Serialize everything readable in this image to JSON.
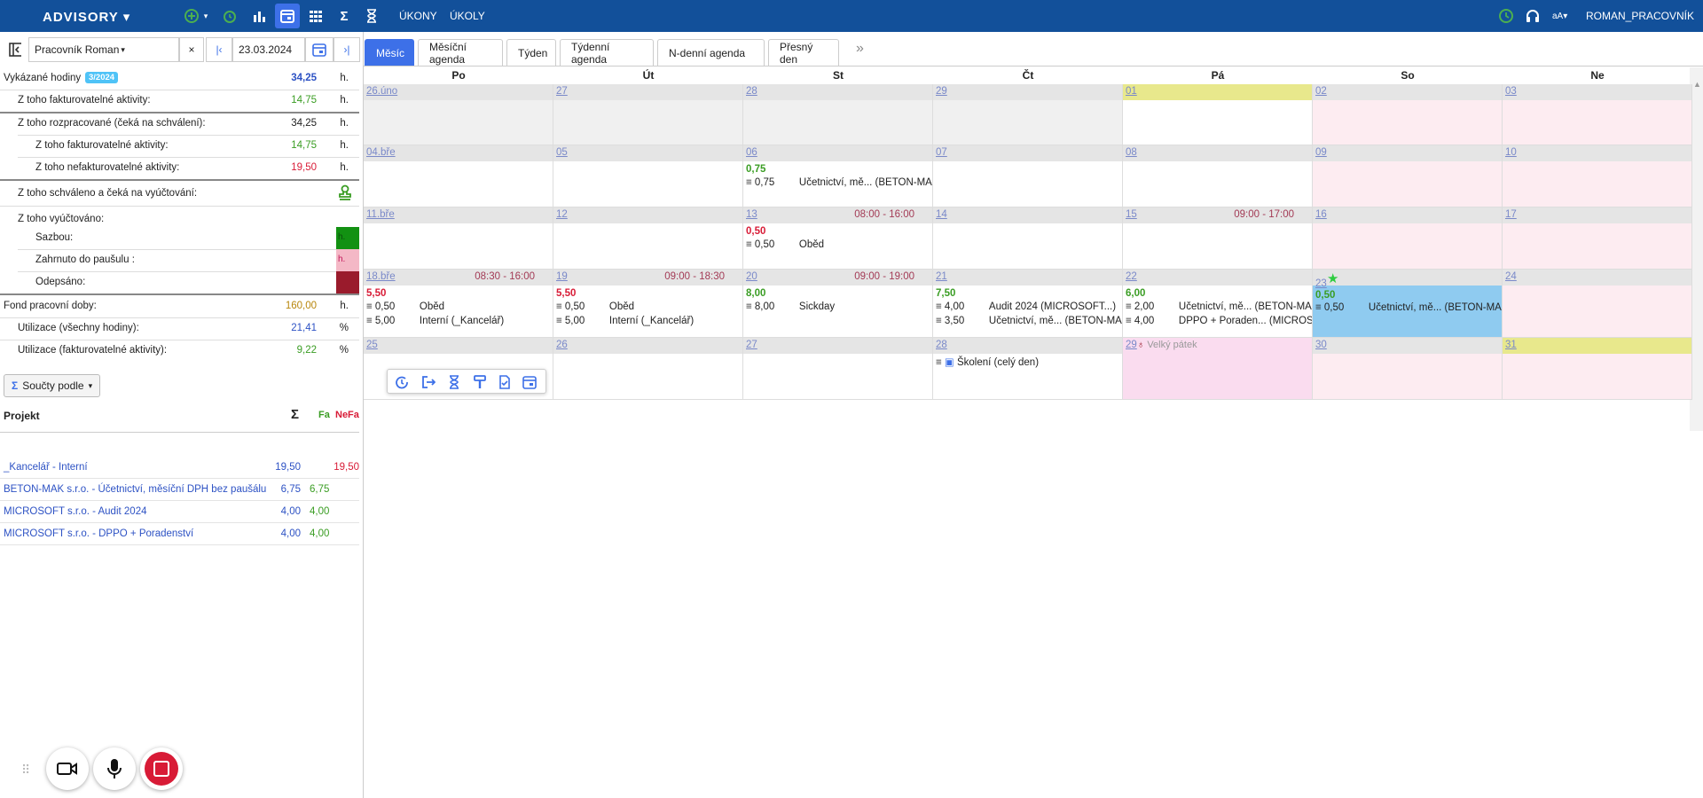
{
  "topbar": {
    "logo": "ADVISORY",
    "ukony": "ÚKONY",
    "ukoly": "ÚKOLY",
    "font_size": "aA",
    "user": "ROMAN_PRACOVNÍK"
  },
  "filter": {
    "worker": "Pracovník Roman",
    "date": "23.03.2024"
  },
  "stats": {
    "vykazane_label": "Vykázané hodiny",
    "vykazane_badge": "3/2024",
    "vykazane_value": "34,25",
    "unit": "h.",
    "fakt_label": "Z toho fakturovatelné aktivity:",
    "fakt_value": "14,75",
    "rozprac_label": "Z toho rozpracované (čeká na schválení):",
    "rozprac_value": "34,25",
    "rozprac_fakt_label": "Z toho fakturovatelné aktivity:",
    "rozprac_fakt_value": "14,75",
    "rozprac_nefakt_label": "Z toho nefakturovatelné aktivity:",
    "rozprac_nefakt_value": "19,50",
    "schvaleno_label": "Z toho schváleno a čeká na vyúčtování:",
    "vyuct_label": "Z toho vyúčtováno:",
    "sazbou_label": "Sazbou:",
    "sazbou_unit": "h.",
    "pausal_label": "Zahrnuto do paušulu :",
    "pausal_unit": "h.",
    "odepsano_label": "Odepsáno:",
    "fond_label": "Fond pracovní doby:",
    "fond_value": "160,00",
    "util_all_label": "Utilizace (všechny hodiny):",
    "util_all_value": "21,41",
    "pct": "%",
    "util_fakt_label": "Utilizace (fakturovatelné aktivity):",
    "util_fakt_value": "9,22"
  },
  "sums": {
    "button": "Součty podle",
    "col_project": "Projekt",
    "col_sum": "Σ",
    "col_fa": "Fa",
    "col_nefa": "NeFa"
  },
  "projects": [
    {
      "name": "_Kancelář - Interní",
      "sum": "19,50",
      "fa": "",
      "nefa": "19,50"
    },
    {
      "name": "BETON-MAK s.r.o. - Účetnictví, měsíční DPH bez paušálu",
      "sum": "6,75",
      "fa": "6,75",
      "nefa": ""
    },
    {
      "name": "MICROSOFT s.r.o. - Audit 2024",
      "sum": "4,00",
      "fa": "4,00",
      "nefa": ""
    },
    {
      "name": "MICROSOFT s.r.o. - DPPO + Poradenství",
      "sum": "4,00",
      "fa": "4,00",
      "nefa": ""
    }
  ],
  "tabs": [
    "Měsíc",
    "Měsíční agenda",
    "Týden",
    "Týdenní agenda",
    "N-denní agenda",
    "Přesný den"
  ],
  "days": [
    "Po",
    "Út",
    "St",
    "Čt",
    "Pá",
    "So",
    "Ne"
  ],
  "weeks": [
    [
      {
        "num": "26.úno"
      },
      {
        "num": "27"
      },
      {
        "num": "28"
      },
      {
        "num": "29"
      },
      {
        "num": "01"
      },
      {
        "num": "02"
      },
      {
        "num": "03"
      }
    ],
    [
      {
        "num": "04.bře"
      },
      {
        "num": "05"
      },
      {
        "num": "06",
        "total": "0,75",
        "events": [
          {
            "h": "0,75",
            "t": "Účetnictví, mě... (BETON-MAK)"
          }
        ]
      },
      {
        "num": "07"
      },
      {
        "num": "08"
      },
      {
        "num": "09"
      },
      {
        "num": "10"
      }
    ],
    [
      {
        "num": "11.bře"
      },
      {
        "num": "12"
      },
      {
        "num": "13",
        "time": "08:00 - 16:00",
        "total": "0,50",
        "events": [
          {
            "h": "0,50",
            "t": "Oběd"
          }
        ]
      },
      {
        "num": "14"
      },
      {
        "num": "15",
        "time": "09:00 - 17:00"
      },
      {
        "num": "16"
      },
      {
        "num": "17"
      }
    ],
    [
      {
        "num": "18.bře",
        "time": "08:30 - 16:00",
        "total": "5,50",
        "events": [
          {
            "h": "0,50",
            "t": "Oběd"
          },
          {
            "h": "5,00",
            "t": "Interní (_Kancelář)"
          }
        ]
      },
      {
        "num": "19",
        "time": "09:00 - 18:30",
        "total": "5,50",
        "events": [
          {
            "h": "0,50",
            "t": "Oběd"
          },
          {
            "h": "5,00",
            "t": "Interní (_Kancelář)"
          }
        ]
      },
      {
        "num": "20",
        "time": "09:00 - 19:00",
        "total": "8,00",
        "events": [
          {
            "h": "8,00",
            "t": "Sickday"
          }
        ]
      },
      {
        "num": "21",
        "total": "7,50",
        "events": [
          {
            "h": "4,00",
            "t": "Audit 2024 (MICROSOFT...)"
          },
          {
            "h": "3,50",
            "t": "Účetnictví, mě... (BETON-MAK)"
          }
        ]
      },
      {
        "num": "22",
        "total": "6,00",
        "events": [
          {
            "h": "2,00",
            "t": "Účetnictví, mě... (BETON-MAK)"
          },
          {
            "h": "4,00",
            "t": "DPPO + Poraden... (MICROSOFT)"
          }
        ]
      },
      {
        "num": "23",
        "total": "0,50",
        "events": [
          {
            "h": "0,50",
            "t": "Účetnictví, mě... (BETON-MAK)"
          }
        ]
      },
      {
        "num": "24"
      }
    ],
    [
      {
        "num": "25"
      },
      {
        "num": "26"
      },
      {
        "num": "27"
      },
      {
        "num": "28",
        "allday": "Školení (celý den)"
      },
      {
        "num": "29",
        "holiday": "Velký pátek"
      },
      {
        "num": "30"
      },
      {
        "num": "31"
      }
    ]
  ],
  "colors": {
    "brand": "#12509a",
    "accent": "#3d70e8",
    "weekend": "#fdecf1",
    "holiday": "#fadcef",
    "today": "#e8e88c",
    "selected": "#8fcbf0",
    "red": "#d81b36",
    "green": "#3a9d23"
  }
}
